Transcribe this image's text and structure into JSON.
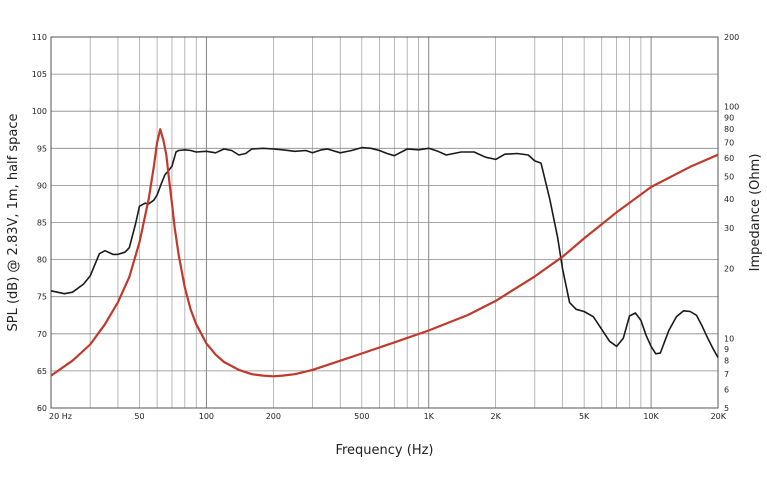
{
  "chart_data": {
    "type": "line",
    "title": "",
    "xlabel": "Frequency (Hz)",
    "ylabel": "SPL (dB) @ 2.83V, 1m, half space",
    "y2label": "Impedance (Ohm)",
    "x_scale": "log",
    "xlim": [
      20,
      20000
    ],
    "ylim": [
      60,
      110
    ],
    "y2lim": [
      5,
      200
    ],
    "y2_scale": "log",
    "grid": true,
    "x_tick_labels": [
      {
        "value": 20,
        "label": "20  Hz"
      },
      {
        "value": 50,
        "label": "50"
      },
      {
        "value": 100,
        "label": "100"
      },
      {
        "value": 200,
        "label": "200"
      },
      {
        "value": 500,
        "label": "500"
      },
      {
        "value": 1000,
        "label": "1K"
      },
      {
        "value": 2000,
        "label": "2K"
      },
      {
        "value": 5000,
        "label": "5K"
      },
      {
        "value": 10000,
        "label": "10K"
      },
      {
        "value": 20000,
        "label": "20K"
      }
    ],
    "y_tick_labels": [
      "60",
      "65",
      "70",
      "75",
      "80",
      "85",
      "90",
      "95",
      "100",
      "105",
      "110"
    ],
    "y2_tick_labels": [
      {
        "value": 5,
        "label": "5"
      },
      {
        "value": 6,
        "label": "6"
      },
      {
        "value": 7,
        "label": "7"
      },
      {
        "value": 8,
        "label": "8"
      },
      {
        "value": 9,
        "label": "9"
      },
      {
        "value": 10,
        "label": "10"
      },
      {
        "value": 20,
        "label": "20"
      },
      {
        "value": 30,
        "label": "30"
      },
      {
        "value": 40,
        "label": "40"
      },
      {
        "value": 50,
        "label": "50"
      },
      {
        "value": 60,
        "label": "60"
      },
      {
        "value": 70,
        "label": "70"
      },
      {
        "value": 80,
        "label": "80"
      },
      {
        "value": 90,
        "label": "90"
      },
      {
        "value": 100,
        "label": "100"
      },
      {
        "value": 200,
        "label": "200"
      }
    ],
    "series": [
      {
        "axis": "left",
        "color": "#1a1a1a",
        "x": [
          20,
          23,
          25,
          28,
          30,
          33,
          35,
          38,
          40,
          43,
          45,
          48,
          50,
          53,
          55,
          58,
          60,
          63,
          65,
          68,
          70,
          73,
          75,
          80,
          85,
          90,
          100,
          110,
          120,
          130,
          140,
          150,
          160,
          180,
          200,
          220,
          250,
          280,
          300,
          330,
          350,
          400,
          450,
          500,
          550,
          600,
          650,
          700,
          800,
          900,
          1000,
          1100,
          1200,
          1400,
          1600,
          1800,
          2000,
          2200,
          2500,
          2800,
          3000,
          3200,
          3500,
          3800,
          4000,
          4300,
          4600,
          5000,
          5500,
          6000,
          6500,
          7000,
          7500,
          8000,
          8500,
          9000,
          9500,
          10000,
          10500,
          11000,
          12000,
          13000,
          14000,
          15000,
          16000,
          17000,
          18000,
          19000,
          20000
        ],
        "y": [
          75.8,
          75.4,
          75.6,
          76.7,
          77.8,
          80.8,
          81.2,
          80.7,
          80.7,
          81.0,
          81.6,
          84.8,
          87.2,
          87.6,
          87.5,
          88.0,
          88.7,
          90.4,
          91.4,
          92.1,
          92.6,
          94.5,
          94.7,
          94.8,
          94.7,
          94.5,
          94.6,
          94.4,
          94.9,
          94.7,
          94.1,
          94.3,
          94.9,
          95.0,
          94.9,
          94.8,
          94.6,
          94.7,
          94.4,
          94.8,
          94.9,
          94.4,
          94.7,
          95.1,
          95.0,
          94.7,
          94.3,
          94.0,
          94.9,
          94.8,
          95.0,
          94.6,
          94.1,
          94.5,
          94.5,
          93.8,
          93.5,
          94.2,
          94.3,
          94.1,
          93.3,
          93.0,
          88.2,
          83.0,
          78.7,
          74.2,
          73.3,
          73.0,
          72.3,
          70.6,
          69.0,
          68.3,
          69.4,
          72.4,
          72.8,
          71.8,
          69.8,
          68.3,
          67.3,
          67.4,
          70.4,
          72.3,
          73.1,
          73.0,
          72.5,
          71.0,
          69.4,
          68.0,
          66.8
        ]
      },
      {
        "axis": "right",
        "color": "#c0392b",
        "x": [
          20,
          25,
          30,
          35,
          40,
          45,
          50,
          55,
          58,
          60,
          62,
          64,
          66,
          68,
          70,
          72,
          75,
          80,
          85,
          90,
          100,
          110,
          120,
          140,
          160,
          180,
          200,
          220,
          250,
          300,
          400,
          500,
          700,
          1000,
          1500,
          2000,
          3000,
          4000,
          5000,
          7000,
          10000,
          15000,
          20000
        ],
        "y": [
          6.9,
          8.0,
          9.4,
          11.5,
          14.3,
          18.4,
          26.0,
          40.0,
          55.0,
          70.0,
          80.0,
          72.0,
          62.0,
          48.0,
          38.0,
          30.0,
          23.0,
          16.5,
          13.3,
          11.5,
          9.5,
          8.5,
          7.9,
          7.3,
          7.0,
          6.9,
          6.85,
          6.9,
          7.0,
          7.3,
          8.0,
          8.6,
          9.6,
          10.8,
          12.6,
          14.5,
          18.5,
          22.5,
          27.0,
          35.0,
          45.0,
          55.0,
          62.0
        ]
      }
    ]
  }
}
